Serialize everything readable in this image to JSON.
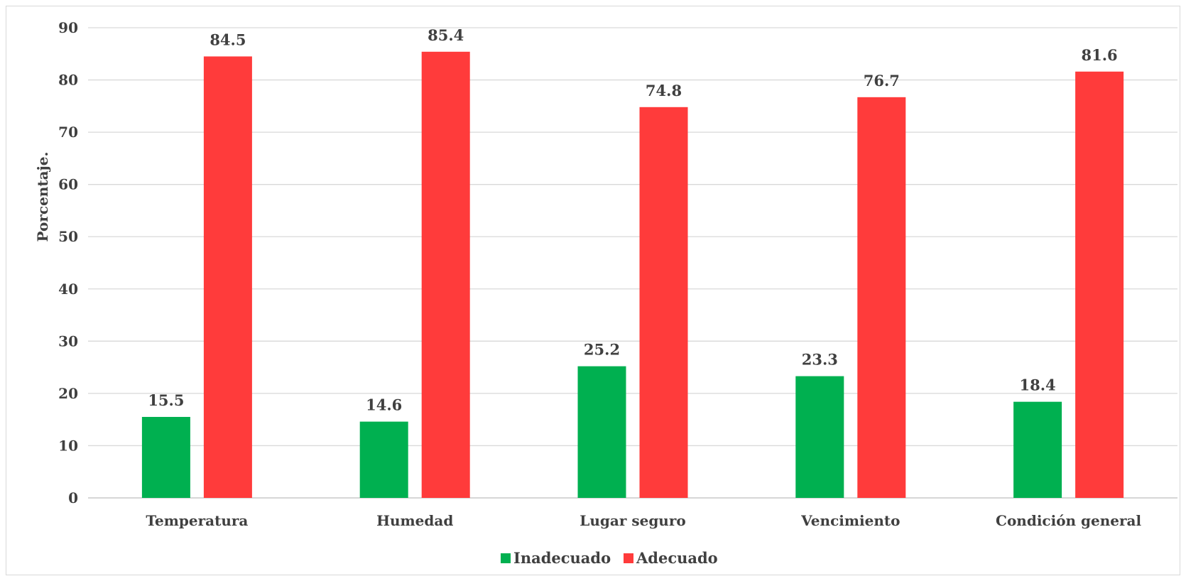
{
  "chart_data": {
    "type": "bar",
    "categories": [
      "Temperatura",
      "Humedad",
      "Lugar seguro",
      "Vencimiento",
      "Condición general"
    ],
    "series": [
      {
        "name": "Inadecuado",
        "color": "#00b050",
        "values": [
          15.5,
          14.6,
          25.2,
          23.3,
          18.4
        ]
      },
      {
        "name": "Adecuado",
        "color": "#ff3b3b",
        "values": [
          84.5,
          85.4,
          74.8,
          76.7,
          81.6
        ]
      }
    ],
    "ylabel": "Porcentaje.",
    "xlabel": "",
    "ylim": [
      0,
      90
    ],
    "yticks": [
      0,
      10,
      20,
      30,
      40,
      50,
      60,
      70,
      80,
      90
    ],
    "grid": true,
    "legend_position": "bottom",
    "data_labels": true
  }
}
